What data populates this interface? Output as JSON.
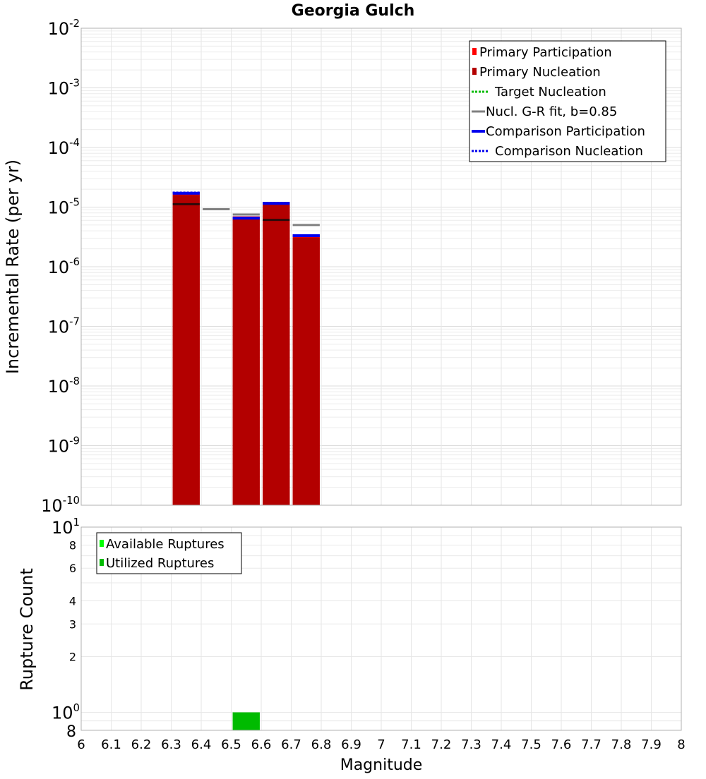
{
  "chart_data": [
    {
      "type": "bar",
      "title": "Georgia Gulch",
      "ylabel": "Incremental Rate (per yr)",
      "yscale": "log",
      "ylim_exponents": [
        -10,
        -2
      ],
      "y_tick_labels": [
        {
          "base": "10",
          "exp": "-2"
        },
        {
          "base": "10",
          "exp": "-3"
        },
        {
          "base": "10",
          "exp": "-4"
        },
        {
          "base": "10",
          "exp": "-5"
        },
        {
          "base": "10",
          "exp": "-6"
        },
        {
          "base": "10",
          "exp": "-7"
        },
        {
          "base": "10",
          "exp": "-8"
        },
        {
          "base": "10",
          "exp": "-9"
        },
        {
          "base": "10",
          "exp": "-10"
        }
      ],
      "xlim": [
        6.0,
        8.0
      ],
      "bin_width": 0.1,
      "participation": [
        {
          "x": 6.35,
          "y": 1.8e-05
        },
        {
          "x": 6.55,
          "y": 7e-06
        },
        {
          "x": 6.65,
          "y": 1.22e-05
        },
        {
          "x": 6.75,
          "y": 3.5e-06
        }
      ],
      "nucleation": [
        {
          "x": 6.35,
          "y": 1.6e-05
        },
        {
          "x": 6.55,
          "y": 6.2e-06
        },
        {
          "x": 6.65,
          "y": 1.12e-05
        },
        {
          "x": 6.75,
          "y": 3.1e-06
        }
      ],
      "comparison_participation": [
        {
          "x": 6.35,
          "y": 1.8e-05
        },
        {
          "x": 6.55,
          "y": 6.9e-06
        },
        {
          "x": 6.65,
          "y": 1.22e-05
        },
        {
          "x": 6.75,
          "y": 3.5e-06
        }
      ],
      "comparison_nucleation": [
        {
          "x": 6.35,
          "y": 1.75e-05
        },
        {
          "x": 6.55,
          "y": 6.5e-06
        },
        {
          "x": 6.65,
          "y": 1.17e-05
        },
        {
          "x": 6.75,
          "y": 3.3e-06
        }
      ],
      "gr_fit": [
        {
          "x": 6.35,
          "y": 1.12e-05
        },
        {
          "x": 6.45,
          "y": 9.2e-06
        },
        {
          "x": 6.55,
          "y": 7.5e-06
        },
        {
          "x": 6.65,
          "y": 6.1e-06
        },
        {
          "x": 6.75,
          "y": 5e-06
        }
      ],
      "legend": [
        {
          "label": "Primary Participation",
          "style": "square",
          "color": "#ff0000"
        },
        {
          "label": "Primary Nucleation",
          "style": "square",
          "color": "#b30000"
        },
        {
          "label": "Target Nucleation",
          "style": "dotted",
          "color": "#00bb00"
        },
        {
          "label": "Nucl. G-R fit, b=0.85",
          "style": "solid",
          "color": "#808080"
        },
        {
          "label": "Comparison Participation",
          "style": "thick",
          "color": "#0000ee"
        },
        {
          "label": "Comparison Nucleation",
          "style": "dotted",
          "color": "#0000ee"
        }
      ],
      "legend_position": "top-right"
    },
    {
      "type": "bar",
      "xlabel": "Magnitude",
      "ylabel": "Rupture Count",
      "yscale": "log",
      "ylim": [
        0.8,
        10
      ],
      "y_major_labels": [
        {
          "base": "10",
          "exp": "1",
          "value": 10
        },
        {
          "base": "10",
          "exp": "0",
          "value": 1
        }
      ],
      "y_minor_labels": [
        {
          "label": "8",
          "value": 8
        },
        {
          "label": "6",
          "value": 6
        },
        {
          "label": "4",
          "value": 4
        },
        {
          "label": "3",
          "value": 3
        },
        {
          "label": "2",
          "value": 2
        },
        {
          "label": "8",
          "value": 0.8
        }
      ],
      "x_tick_labels": [
        "6",
        "6.1",
        "6.2",
        "6.3",
        "6.4",
        "6.5",
        "6.6",
        "6.7",
        "6.8",
        "6.9",
        "7",
        "7.1",
        "7.2",
        "7.3",
        "7.4",
        "7.5",
        "7.6",
        "7.7",
        "7.8",
        "7.9",
        "8"
      ],
      "available": [
        {
          "x": 6.55,
          "y": 1
        }
      ],
      "utilized": [
        {
          "x": 6.55,
          "y": 1
        }
      ],
      "legend": [
        {
          "label": "Available Ruptures",
          "color": "#00ff00"
        },
        {
          "label": "Utilized Ruptures",
          "color": "#00bb00"
        }
      ],
      "legend_position": "top-left"
    }
  ]
}
